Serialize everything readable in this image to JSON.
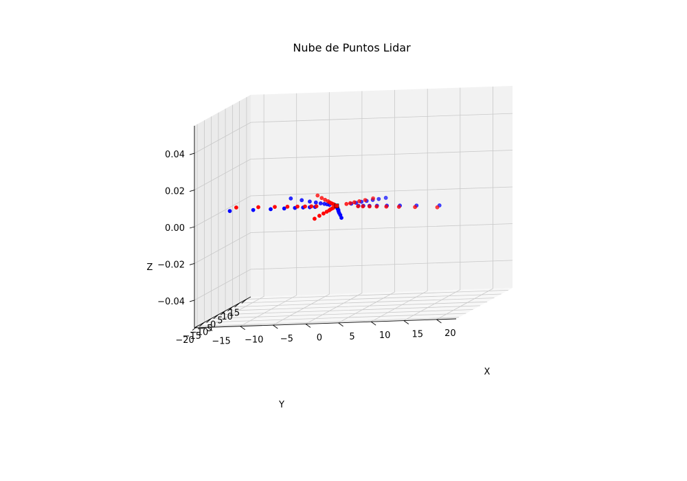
{
  "chart_data": {
    "type": "scatter3d",
    "title": "Nube de Puntos Lidar",
    "xlabel": "X",
    "ylabel": "Y",
    "zlabel": "Z",
    "xlim": [
      -17,
      23
    ],
    "ylim": [
      -22,
      18
    ],
    "zlim": [
      -0.055,
      0.055
    ],
    "x_ticks": [
      -15,
      -10,
      -5,
      0,
      5,
      10,
      15,
      20
    ],
    "x_tick_labels": [
      "−15",
      "−10",
      "−5",
      "0",
      "5",
      "10",
      "15",
      "20"
    ],
    "y_ticks": [
      -20,
      -15,
      -10,
      -5,
      0,
      5,
      10,
      15
    ],
    "y_tick_labels": [
      "−20",
      "−15",
      "−10",
      "−5",
      "0",
      "5",
      "10",
      "15"
    ],
    "z_ticks": [
      -0.04,
      -0.02,
      0.0,
      0.02,
      0.04
    ],
    "z_tick_labels": [
      "−0.04",
      "−0.02",
      "0.00",
      "0.02",
      "0.04"
    ],
    "grid": true,
    "colors": {
      "series_a": "#0000ff",
      "series_b": "#ff0000",
      "marker": "#ff0000"
    },
    "series": [
      {
        "color": "blue",
        "points": [
          [
            1.7,
            2.5,
            0
          ],
          [
            2.2,
            3.5,
            0
          ],
          [
            2.8,
            4.6,
            0
          ],
          [
            3.4,
            5.5,
            0
          ],
          [
            4.1,
            6.6,
            0
          ],
          [
            4.8,
            7.6,
            0
          ],
          [
            5.6,
            8.9,
            0
          ],
          [
            3.5,
            -0.8,
            0
          ],
          [
            4.3,
            -1.0,
            0
          ],
          [
            5.3,
            -1.3,
            0
          ],
          [
            6.5,
            -1.6,
            0
          ],
          [
            8.1,
            -2.0,
            0
          ],
          [
            10.2,
            -2.5,
            0
          ],
          [
            12.9,
            -3.2,
            0
          ],
          [
            16.6,
            -4.1,
            0
          ],
          [
            0.6,
            -2.3,
            0
          ],
          [
            0.8,
            -3.2,
            0
          ],
          [
            1.1,
            -4.3,
            0
          ],
          [
            1.5,
            -5.7,
            0
          ],
          [
            1.9,
            -7.5,
            0
          ],
          [
            2.5,
            -9.8,
            0
          ],
          [
            3.3,
            -12.7,
            0
          ],
          [
            4.3,
            -16.6,
            0
          ],
          [
            -3.2,
            -0.4,
            0
          ],
          [
            -4.0,
            -0.5,
            0
          ],
          [
            -5.0,
            -0.6,
            0
          ],
          [
            -6.2,
            -0.8,
            0
          ],
          [
            -7.8,
            -1.0,
            0
          ],
          [
            -9.8,
            -1.3,
            0
          ],
          [
            -12.4,
            -1.6,
            0
          ],
          [
            -15.9,
            -2.0,
            0
          ],
          [
            -1.5,
            1.9,
            0
          ],
          [
            -2.0,
            2.6,
            0
          ],
          [
            -2.6,
            3.4,
            0
          ],
          [
            -3.4,
            4.4,
            0
          ],
          [
            -4.4,
            5.7,
            0
          ],
          [
            -5.7,
            7.4,
            0
          ],
          [
            -7.4,
            9.6,
            0
          ],
          [
            -9.7,
            12.5,
            0
          ]
        ]
      },
      {
        "color": "red",
        "points": [
          [
            1.0,
            2.3,
            0
          ],
          [
            1.4,
            3.2,
            0
          ],
          [
            1.8,
            4.2,
            0
          ],
          [
            2.3,
            5.4,
            0
          ],
          [
            2.9,
            6.8,
            0
          ],
          [
            3.7,
            8.7,
            0
          ],
          [
            3.6,
            -1.5,
            0
          ],
          [
            4.4,
            -1.8,
            0
          ],
          [
            5.5,
            -2.2,
            0
          ],
          [
            6.7,
            -2.7,
            0
          ],
          [
            8.3,
            -3.3,
            0
          ],
          [
            10.4,
            -4.1,
            0
          ],
          [
            13.1,
            -5.2,
            0
          ],
          [
            16.8,
            -6.6,
            0
          ],
          [
            0.0,
            -2.3,
            0
          ],
          [
            0.0,
            -3.2,
            0
          ],
          [
            0.0,
            -4.3,
            0
          ],
          [
            0.1,
            -5.7,
            0
          ],
          [
            0.1,
            -7.5,
            0
          ],
          [
            0.1,
            -9.8,
            0
          ],
          [
            0.1,
            -12.7,
            0
          ],
          [
            0.2,
            -16.6,
            0
          ],
          [
            -3.2,
            0.5,
            0
          ],
          [
            -4.0,
            0.6,
            0
          ],
          [
            -5.0,
            0.8,
            0
          ],
          [
            -6.2,
            1.0,
            0
          ],
          [
            -7.8,
            1.3,
            0
          ],
          [
            -9.8,
            1.6,
            0
          ],
          [
            -12.4,
            2.0,
            0
          ],
          [
            -15.9,
            2.6,
            0
          ],
          [
            -0.9,
            2.3,
            0
          ],
          [
            -1.3,
            3.1,
            0
          ],
          [
            -1.7,
            4.1,
            0
          ],
          [
            -2.2,
            5.3,
            0
          ],
          [
            -2.8,
            6.9,
            0
          ],
          [
            -3.7,
            9.0,
            0
          ],
          [
            -4.8,
            11.7,
            0
          ],
          [
            -6.2,
            15.3,
            0
          ]
        ]
      }
    ],
    "origin_marker": [
      0,
      0,
      0
    ]
  }
}
